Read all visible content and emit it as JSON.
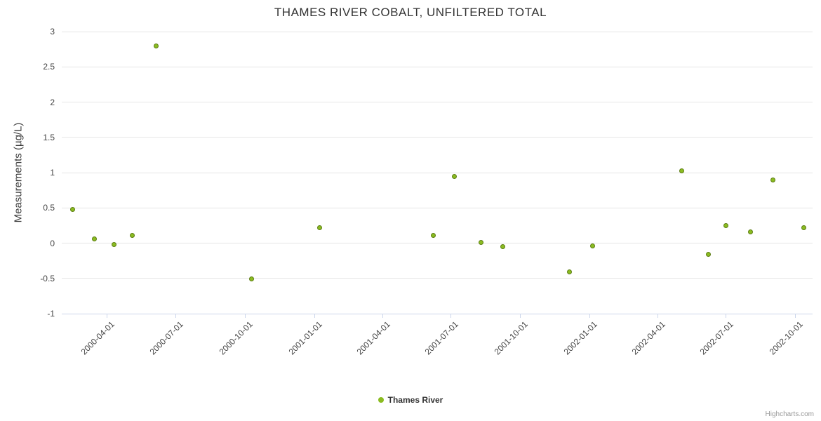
{
  "credits": "Highcharts.com",
  "colors": {
    "marker_fill": "#8bbc21",
    "marker_stroke": "#5c7d13",
    "grid": "#e6e6e6",
    "axis": "#ccd6eb",
    "title_text": "#333333",
    "label_text": "#444444"
  },
  "chart_data": {
    "type": "scatter",
    "title": "THAMES RIVER COBALT, UNFILTERED TOTAL",
    "xlabel": "",
    "ylabel": "Measurements (µg/L)",
    "xlim": [
      "2000-02-01",
      "2002-10-24"
    ],
    "ylim": [
      -1,
      3
    ],
    "grid": "horizontal",
    "legend_position": "bottom-center",
    "yticks": [
      3,
      2.5,
      2,
      1.5,
      1,
      0.5,
      0,
      -0.5,
      -1
    ],
    "xticks": [
      "2000-04-01",
      "2000-07-01",
      "2000-10-01",
      "2001-01-01",
      "2001-04-01",
      "2001-07-01",
      "2001-10-01",
      "2002-01-01",
      "2002-04-01",
      "2002-07-01",
      "2002-10-01"
    ],
    "series": [
      {
        "name": "Thames River",
        "color": "#8bbc21",
        "points": [
          {
            "date": "2000-02-15",
            "value": 0.48
          },
          {
            "date": "2000-03-15",
            "value": 0.06
          },
          {
            "date": "2000-04-10",
            "value": -0.02
          },
          {
            "date": "2000-05-05",
            "value": 0.11
          },
          {
            "date": "2000-06-05",
            "value": 2.8
          },
          {
            "date": "2000-10-10",
            "value": -0.51
          },
          {
            "date": "2001-01-08",
            "value": 0.22
          },
          {
            "date": "2001-06-08",
            "value": 0.11
          },
          {
            "date": "2001-07-06",
            "value": 0.95
          },
          {
            "date": "2001-08-10",
            "value": 0.01
          },
          {
            "date": "2001-09-08",
            "value": -0.05
          },
          {
            "date": "2001-12-05",
            "value": -0.41
          },
          {
            "date": "2002-01-05",
            "value": -0.04
          },
          {
            "date": "2002-05-03",
            "value": 1.02
          },
          {
            "date": "2002-06-08",
            "value": -0.16
          },
          {
            "date": "2002-07-01",
            "value": 0.25
          },
          {
            "date": "2002-08-03",
            "value": 0.16
          },
          {
            "date": "2002-09-01",
            "value": 0.9
          },
          {
            "date": "2002-10-12",
            "value": 0.22
          }
        ]
      }
    ]
  }
}
